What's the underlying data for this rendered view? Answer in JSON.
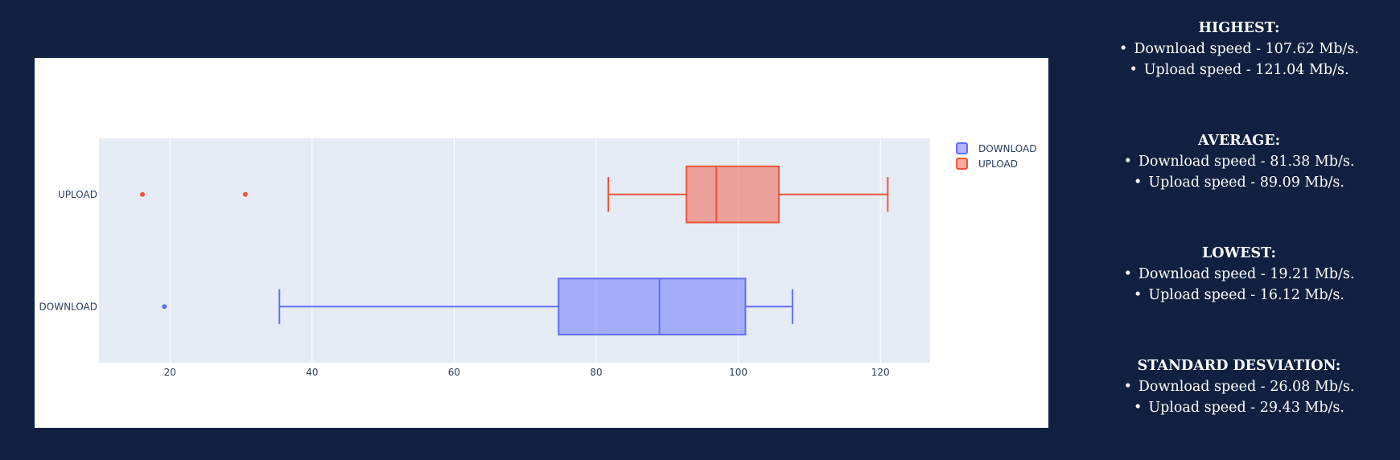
{
  "chart_data": {
    "type": "box",
    "orientation": "horizontal",
    "title": "",
    "xlabel": "",
    "ylabel": "",
    "xlim": [
      10,
      127
    ],
    "x_ticks": [
      20,
      40,
      60,
      80,
      100,
      120
    ],
    "categories": [
      "UPLOAD",
      "DOWNLOAD"
    ],
    "grid": true,
    "legend_position": "top-right",
    "series": [
      {
        "name": "DOWNLOAD",
        "color": "#636efa",
        "lower_fence": 35.4,
        "q1": 74.7,
        "median": 88.9,
        "q3": 101.0,
        "upper_fence": 107.62,
        "outliers": [
          19.21
        ]
      },
      {
        "name": "UPLOAD",
        "color": "#ef553b",
        "lower_fence": 81.7,
        "q1": 92.7,
        "median": 96.9,
        "q3": 105.7,
        "upper_fence": 121.04,
        "outliers": [
          16.12,
          30.6
        ]
      }
    ]
  },
  "stats": [
    {
      "heading": "HIGHEST:",
      "download": "Download speed - 107.62 Mb/s.",
      "upload": "Upload speed - 121.04 Mb/s."
    },
    {
      "heading": "AVERAGE:",
      "download": "Download speed - 81.38 Mb/s.",
      "upload": "Upload speed - 89.09 Mb/s."
    },
    {
      "heading": "LOWEST:",
      "download": "Download speed - 19.21 Mb/s.",
      "upload": "Upload speed - 16.12 Mb/s."
    },
    {
      "heading": "STANDARD DESVIATION:",
      "download": "Download speed - 26.08 Mb/s.",
      "upload": "Upload speed - 29.43 Mb/s."
    }
  ],
  "colors": {
    "page_background": "#0f2040",
    "plot_background": "#e5ecf6",
    "card_background": "#ffffff",
    "text": "#2a3f5f"
  }
}
